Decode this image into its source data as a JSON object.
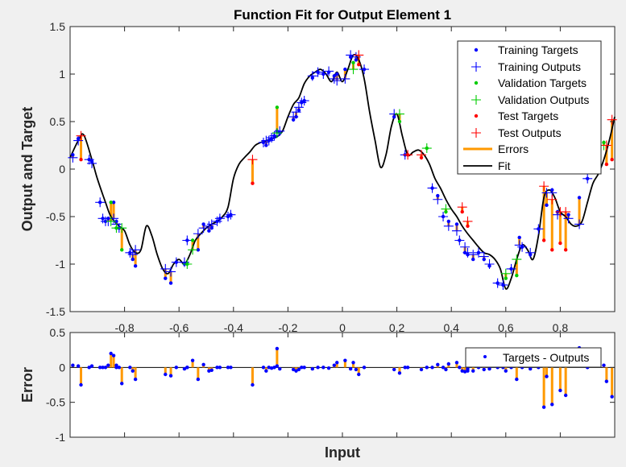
{
  "chart_data": [
    {
      "type": "line",
      "title": "Function Fit for Output Element 1",
      "xlabel": "",
      "ylabel": "Output and Target",
      "xlim": [
        -1,
        1
      ],
      "ylim": [
        -1.5,
        1.5
      ],
      "xticks": [
        "-0.8",
        "-0.6",
        "-0.4",
        "-0.2",
        "0",
        "0.2",
        "0.4",
        "0.6",
        "0.8"
      ],
      "yticks": [
        "-1.5",
        "-1",
        "-0.5",
        "0",
        "0.5",
        "1",
        "1.5"
      ],
      "legend_position": "top-right",
      "legend": [
        "Training Targets",
        "Training Outputs",
        "Validation Targets",
        "Validation Outputs",
        "Test Targets",
        "Test Outputs",
        "Errors",
        "Fit"
      ],
      "colors": {
        "training": "#0000ff",
        "validation": "#00cc00",
        "test": "#ff0000",
        "errors": "#ff9900",
        "fit": "#000000"
      },
      "fit": {
        "x": [
          -1,
          -0.97,
          -0.95,
          -0.92,
          -0.9,
          -0.87,
          -0.85,
          -0.82,
          -0.8,
          -0.78,
          -0.76,
          -0.74,
          -0.72,
          -0.7,
          -0.68,
          -0.66,
          -0.64,
          -0.62,
          -0.6,
          -0.58,
          -0.56,
          -0.54,
          -0.52,
          -0.5,
          -0.48,
          -0.46,
          -0.44,
          -0.42,
          -0.4,
          -0.38,
          -0.36,
          -0.34,
          -0.32,
          -0.3,
          -0.28,
          -0.26,
          -0.24,
          -0.22,
          -0.2,
          -0.18,
          -0.16,
          -0.14,
          -0.12,
          -0.1,
          -0.08,
          -0.06,
          -0.04,
          -0.02,
          0,
          0.02,
          0.04,
          0.06,
          0.08,
          0.1,
          0.12,
          0.14,
          0.16,
          0.18,
          0.2,
          0.22,
          0.24,
          0.26,
          0.28,
          0.3,
          0.32,
          0.34,
          0.36,
          0.38,
          0.4,
          0.42,
          0.44,
          0.46,
          0.48,
          0.5,
          0.52,
          0.54,
          0.56,
          0.58,
          0.6,
          0.62,
          0.64,
          0.66,
          0.68,
          0.7,
          0.72,
          0.74,
          0.76,
          0.78,
          0.8,
          0.82,
          0.84,
          0.86,
          0.88,
          0.9,
          0.92,
          0.94,
          0.96,
          0.98,
          1
        ],
        "y": [
          0.12,
          0.3,
          0.36,
          0.1,
          -0.1,
          -0.35,
          -0.5,
          -0.6,
          -0.65,
          -0.8,
          -0.88,
          -0.85,
          -0.6,
          -0.7,
          -0.9,
          -1.05,
          -1.1,
          -1.0,
          -0.95,
          -1.0,
          -0.9,
          -0.75,
          -0.68,
          -0.62,
          -0.58,
          -0.55,
          -0.5,
          -0.4,
          -0.1,
          0.05,
          0.12,
          0.18,
          0.25,
          0.28,
          0.3,
          0.32,
          0.34,
          0.4,
          0.55,
          0.68,
          0.75,
          0.9,
          0.98,
          1.02,
          1.05,
          1.0,
          0.92,
          1.02,
          0.92,
          1.05,
          1.2,
          1.15,
          0.95,
          0.6,
          0.3,
          0.02,
          0.15,
          0.45,
          0.58,
          0.35,
          0.15,
          0.18,
          0.2,
          0.15,
          0.05,
          -0.1,
          -0.2,
          -0.32,
          -0.42,
          -0.5,
          -0.6,
          -0.68,
          -0.75,
          -0.82,
          -0.88,
          -0.9,
          -0.95,
          -1.05,
          -1.26,
          -1.15,
          -0.95,
          -0.8,
          -0.85,
          -0.95,
          -0.7,
          -0.3,
          -0.22,
          -0.3,
          -0.45,
          -0.5,
          -0.58,
          -0.6,
          -0.55,
          -0.35,
          -0.15,
          -0.05,
          0.1,
          0.3,
          0.55
        ]
      },
      "training": {
        "x": [
          -0.99,
          -0.97,
          -0.93,
          -0.92,
          -0.89,
          -0.88,
          -0.87,
          -0.86,
          -0.84,
          -0.83,
          -0.82,
          -0.78,
          -0.77,
          -0.76,
          -0.65,
          -0.63,
          -0.61,
          -0.58,
          -0.57,
          -0.53,
          -0.51,
          -0.49,
          -0.48,
          -0.46,
          -0.45,
          -0.42,
          -0.41,
          -0.29,
          -0.28,
          -0.27,
          -0.26,
          -0.25,
          -0.24,
          -0.23,
          -0.18,
          -0.17,
          -0.16,
          -0.15,
          -0.14,
          -0.11,
          -0.09,
          -0.07,
          -0.05,
          -0.03,
          -0.02,
          0.01,
          0.03,
          0.05,
          0.08,
          0.19,
          0.23,
          0.33,
          0.35,
          0.37,
          0.39,
          0.42,
          0.43,
          0.45,
          0.46,
          0.48,
          0.5,
          0.52,
          0.54,
          0.57,
          0.59,
          0.62,
          0.65,
          0.66,
          0.69,
          0.72,
          0.75,
          0.77,
          0.79,
          0.83,
          0.87,
          0.9
        ],
        "target": [
          0.15,
          0.32,
          0.1,
          0.08,
          -0.35,
          -0.52,
          -0.55,
          -0.52,
          -0.35,
          -0.55,
          -0.62,
          -0.88,
          -0.95,
          -1.02,
          -1.15,
          -1.2,
          -0.98,
          -1.0,
          -0.75,
          -0.85,
          -0.58,
          -0.65,
          -0.62,
          -0.55,
          -0.52,
          -0.5,
          -0.48,
          0.28,
          0.25,
          0.3,
          0.32,
          0.35,
          0.4,
          0.38,
          0.52,
          0.55,
          0.62,
          0.7,
          0.72,
          0.96,
          1.02,
          1.0,
          1.02,
          0.98,
          1.0,
          1.05,
          1.18,
          1.15,
          1.05,
          0.55,
          0.15,
          -0.2,
          -0.28,
          -0.5,
          -0.55,
          -0.58,
          -0.75,
          -0.88,
          -0.9,
          -0.95,
          -0.88,
          -0.95,
          -1.02,
          -1.2,
          -1.22,
          -1.05,
          -0.72,
          -0.82,
          -0.9,
          -0.63,
          -0.38,
          -0.22,
          -0.45,
          -0.48,
          -0.3,
          -0.1
        ],
        "output": [
          0.12,
          0.3,
          0.1,
          0.06,
          -0.35,
          -0.52,
          -0.55,
          -0.55,
          -0.52,
          -0.58,
          -0.62,
          -0.88,
          -0.9,
          -0.85,
          -1.05,
          -1.08,
          -0.98,
          -0.98,
          -0.75,
          -0.68,
          -0.62,
          -0.6,
          -0.58,
          -0.55,
          -0.52,
          -0.5,
          -0.48,
          0.28,
          0.3,
          0.3,
          0.33,
          0.35,
          0.38,
          0.4,
          0.55,
          0.6,
          0.65,
          0.7,
          0.72,
          0.98,
          1.02,
          1.0,
          1.03,
          0.95,
          0.93,
          0.95,
          1.2,
          1.18,
          1.05,
          0.58,
          0.15,
          -0.2,
          -0.32,
          -0.5,
          -0.6,
          -0.65,
          -0.75,
          -0.82,
          -0.88,
          -0.9,
          -0.88,
          -0.92,
          -1.0,
          -1.2,
          -1.22,
          -1.05,
          -0.8,
          -0.82,
          -0.88,
          -0.63,
          -0.25,
          -0.25,
          -0.48,
          -0.52,
          -0.58,
          -0.1
        ]
      },
      "validation": {
        "x": [
          -0.85,
          -0.83,
          -0.81,
          -0.57,
          -0.55,
          -0.24,
          0.04,
          0.21,
          0.31,
          0.38,
          0.6,
          0.64,
          0.96
        ],
        "target": [
          -0.35,
          -0.62,
          -0.85,
          -1.0,
          -0.75,
          0.65,
          1.12,
          0.5,
          0.22,
          -0.45,
          -1.15,
          -1.12,
          0.28
        ],
        "output": [
          -0.55,
          -0.62,
          -0.62,
          -1.0,
          -0.85,
          0.38,
          1.05,
          0.58,
          0.22,
          -0.42,
          -1.1,
          -0.95,
          0.25
        ]
      },
      "test": {
        "x": [
          -0.96,
          -0.33,
          0.06,
          0.24,
          0.29,
          0.44,
          0.46,
          0.74,
          0.77,
          0.8,
          0.82,
          0.97,
          0.99
        ],
        "target": [
          0.1,
          -0.15,
          1.1,
          0.15,
          0.12,
          -0.45,
          -0.6,
          -0.75,
          -0.85,
          -0.78,
          -0.85,
          0.05,
          0.1
        ],
        "output": [
          0.35,
          0.1,
          1.2,
          0.15,
          0.15,
          -0.4,
          -0.55,
          -0.18,
          -0.32,
          -0.45,
          -0.45,
          0.25,
          0.52
        ]
      }
    },
    {
      "type": "bar",
      "title": "",
      "xlabel": "Input",
      "ylabel": "Error",
      "ylim": [
        -1,
        0.5
      ],
      "yticks": [
        "-1",
        "-0.5",
        "0",
        "0.5"
      ],
      "legend_position": "top-right",
      "legend": [
        "Targets - Outputs"
      ],
      "note_values_are_targets_minus_outputs": ""
    }
  ]
}
